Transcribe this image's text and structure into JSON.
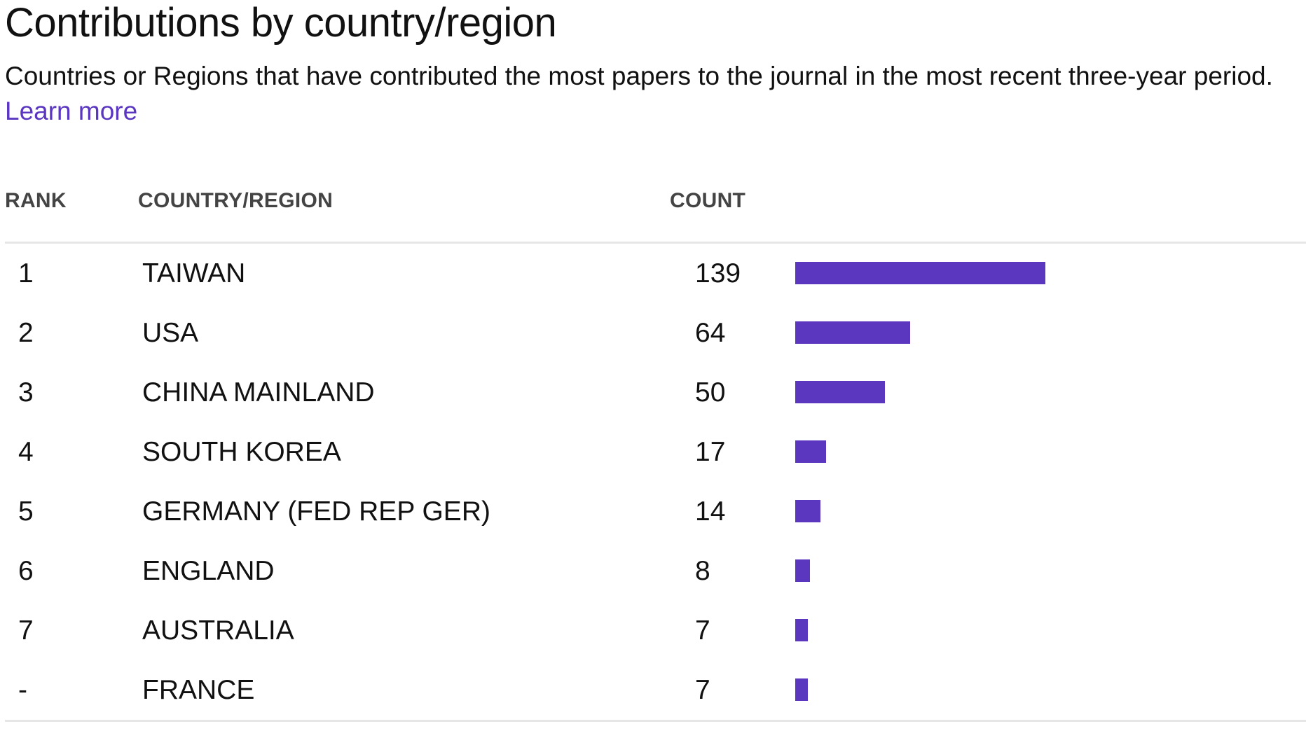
{
  "header": {
    "title": "Contributions by country/region",
    "description": "Countries or Regions that have contributed the most papers to the journal in the most recent three-year period.",
    "learn_more": "Learn more"
  },
  "table": {
    "columns": {
      "rank": "RANK",
      "country": "COUNTRY/REGION",
      "count": "COUNT"
    },
    "bar_max": 139,
    "rows": [
      {
        "rank": "1",
        "country": "TAIWAN",
        "count": 139
      },
      {
        "rank": "2",
        "country": "USA",
        "count": 64
      },
      {
        "rank": "3",
        "country": "CHINA MAINLAND",
        "count": 50
      },
      {
        "rank": "4",
        "country": "SOUTH KOREA",
        "count": 17
      },
      {
        "rank": "5",
        "country": "GERMANY (FED REP GER)",
        "count": 14
      },
      {
        "rank": "6",
        "country": "ENGLAND",
        "count": 8
      },
      {
        "rank": "7",
        "country": "AUSTRALIA",
        "count": 7
      },
      {
        "rank": "-",
        "country": "FRANCE",
        "count": 7
      }
    ]
  },
  "colors": {
    "accent": "#5b36be",
    "link": "#5b36c0",
    "rule": "#e6e6e6"
  }
}
